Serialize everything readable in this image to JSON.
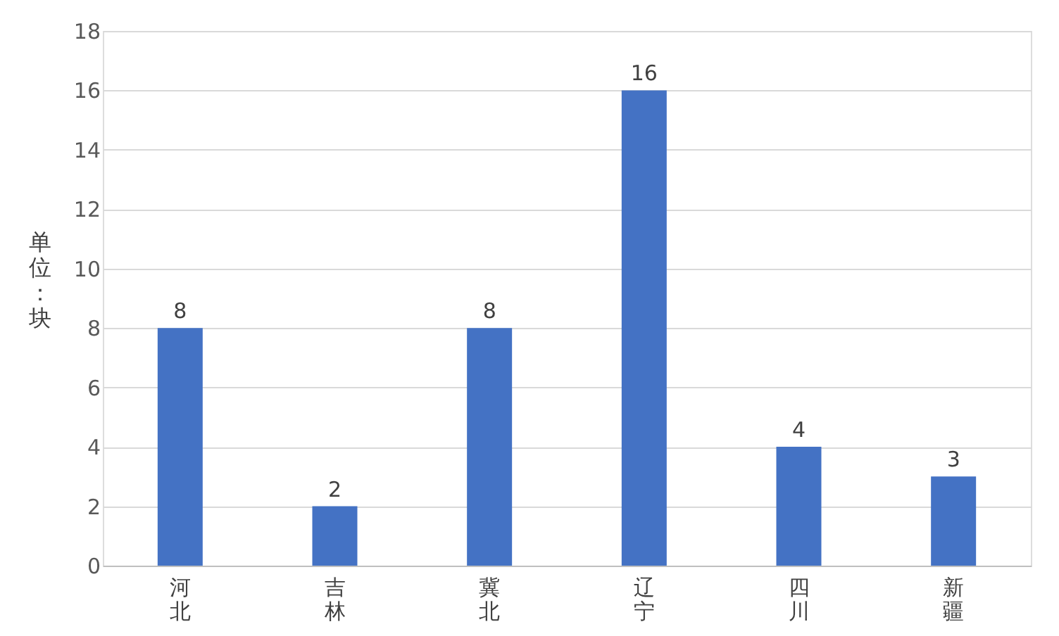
{
  "chart_data": {
    "type": "bar",
    "ylabel": "单位：块",
    "categories": [
      "河北",
      "吉林",
      "冀北",
      "辽宁",
      "四川",
      "新疆"
    ],
    "values": [
      8,
      2,
      8,
      16,
      4,
      3
    ],
    "color": "#4472c4",
    "ylim": [
      0,
      18
    ],
    "yticks": [
      0,
      2,
      4,
      6,
      8,
      10,
      12,
      14,
      16,
      18
    ],
    "grid": "y",
    "data_labels": true
  }
}
